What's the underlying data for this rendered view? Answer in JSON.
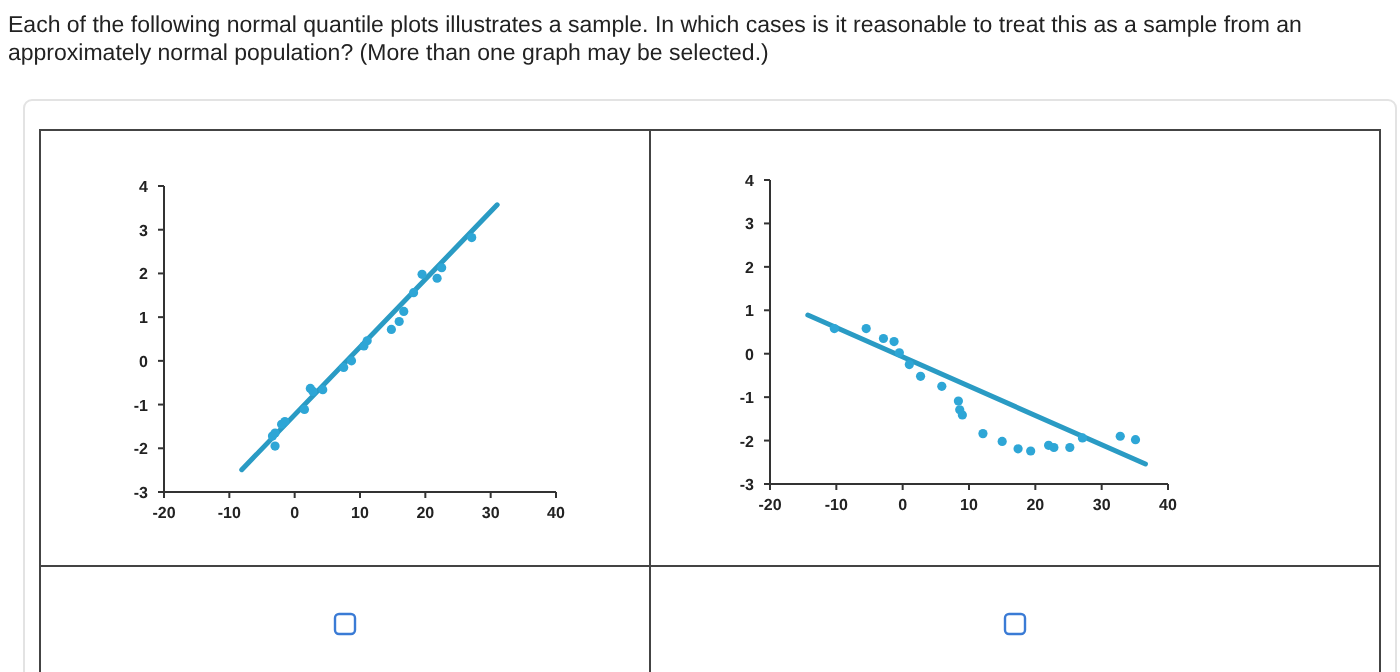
{
  "chart_data": [
    {
      "type": "scatter",
      "annotations": [
        "Each of the following normal quantile plots illustrates a sample. In which cases is it reasonable to treat this as a sample from an approximately normal population? (More than one graph may be selected.)"
      ],
      "xlim": [
        -20,
        40
      ],
      "ylim": [
        -3,
        4
      ],
      "xticks": [
        -20,
        -10,
        0,
        10,
        20,
        30,
        40
      ],
      "yticks": [
        -3,
        -2,
        -1,
        0,
        1,
        2,
        3,
        4
      ],
      "grid": false,
      "series": [
        {
          "marker": "circle",
          "color": "#2ea6d6",
          "x": [
            -3.0,
            -3.4,
            -3.0,
            -2.0,
            -1.5,
            1.5,
            2.4,
            2.8,
            4.3,
            7.5,
            8.7,
            10.6,
            11.1,
            14.8,
            16.0,
            16.7,
            18.2,
            19.5,
            21.8,
            22.5,
            27.1
          ],
          "values": [
            -1.95,
            -1.72,
            -1.65,
            -1.45,
            -1.39,
            -1.11,
            -0.63,
            -0.7,
            -0.66,
            -0.15,
            0.0,
            0.34,
            0.46,
            0.72,
            0.9,
            1.13,
            1.56,
            1.98,
            1.89,
            2.13,
            2.82
          ]
        },
        {
          "type": "line",
          "marker": "none",
          "color": "#2a9bc4",
          "x": [
            -8.1,
            31.0
          ],
          "values": [
            -2.49,
            3.57
          ]
        }
      ]
    },
    {
      "type": "scatter",
      "xlim": [
        -20,
        40
      ],
      "ylim": [
        -3,
        4
      ],
      "xticks": [
        -20,
        -10,
        0,
        10,
        20,
        30,
        40
      ],
      "yticks": [
        -3,
        -2,
        -1,
        0,
        1,
        2,
        3,
        4
      ],
      "grid": false,
      "series": [
        {
          "marker": "circle",
          "color": "#2ea6d6",
          "x": [
            -10.3,
            -5.5,
            -2.9,
            -1.3,
            -0.5,
            1.0,
            2.7,
            5.9,
            8.4,
            8.6,
            9.0,
            12.1,
            15.0,
            17.4,
            19.3,
            22.0,
            22.8,
            25.2,
            27.1,
            32.8,
            35.1
          ],
          "values": [
            0.58,
            0.58,
            0.35,
            0.28,
            0.02,
            -0.25,
            -0.52,
            -0.75,
            -1.09,
            -1.29,
            -1.41,
            -1.84,
            -2.02,
            -2.19,
            -2.24,
            -2.11,
            -2.16,
            -2.16,
            -1.94,
            -1.9,
            -1.98
          ]
        },
        {
          "type": "line",
          "marker": "none",
          "color": "#2a9bc4",
          "x": [
            -14.3,
            36.6
          ],
          "values": [
            0.89,
            -2.54
          ]
        }
      ]
    }
  ]
}
